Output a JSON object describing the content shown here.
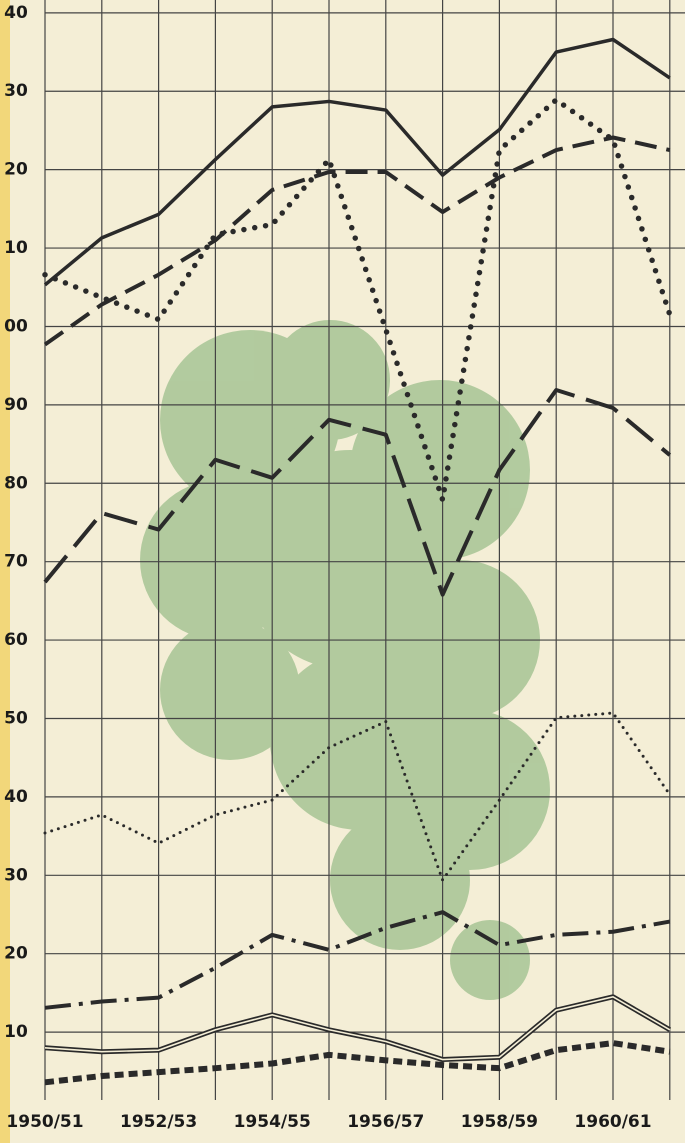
{
  "chart_data": {
    "type": "line",
    "categories": [
      "1950/51",
      null,
      "1952/53",
      null,
      "1954/55",
      null,
      "1956/57",
      null,
      "1958/59",
      null,
      "1960/61",
      null
    ],
    "ylim": [
      3,
      141
    ],
    "yticks": [
      {
        "value": 140,
        "label": "40"
      },
      {
        "value": 130,
        "label": "30"
      },
      {
        "value": 120,
        "label": "20"
      },
      {
        "value": 110,
        "label": "10"
      },
      {
        "value": 100,
        "label": "00"
      },
      90,
      80,
      70,
      60,
      50,
      40,
      30,
      20,
      10
    ],
    "grid": true,
    "series": [
      {
        "color": "#2a2a2a",
        "style": "solid",
        "values": [
          105.3,
          111.3,
          114.3,
          121.3,
          128.0,
          128.7,
          127.6,
          119.3,
          125.1,
          135.0,
          136.6,
          131.7
        ]
      },
      {
        "color": "#2a2a2a",
        "style": "dots",
        "values": [
          106.6,
          103.7,
          100.9,
          111.7,
          113.0,
          121.3,
          99.6,
          77.9,
          122.5,
          128.9,
          123.8,
          101.5
        ]
      },
      {
        "color": "#2a2a2a",
        "style": "dashed",
        "values": [
          97.7,
          102.8,
          106.6,
          111.0,
          117.4,
          119.7,
          119.7,
          114.6,
          119.0,
          122.5,
          124.1,
          122.5
        ]
      },
      {
        "color": "#2a2a2a",
        "style": "longdash",
        "values": [
          67.4,
          76.2,
          74.1,
          83.0,
          80.7,
          88.1,
          86.2,
          65.8,
          81.7,
          91.9,
          89.6,
          83.6
        ]
      },
      {
        "color": "#2a2a2a",
        "style": "dotted",
        "values": [
          35.4,
          37.7,
          34.1,
          37.7,
          39.6,
          46.3,
          49.6,
          29.4,
          39.6,
          50.1,
          50.7,
          40.3
        ]
      },
      {
        "color": "#2a2a2a",
        "style": "dashdot",
        "values": [
          13.1,
          13.9,
          14.4,
          18.2,
          22.4,
          20.5,
          23.3,
          25.3,
          21.1,
          22.4,
          22.8,
          24.1
        ]
      },
      {
        "color": "#2a2a2a",
        "style": "double",
        "values": [
          8.0,
          7.5,
          7.7,
          10.3,
          12.2,
          10.3,
          8.8,
          6.5,
          6.8,
          12.8,
          14.5,
          10.3
        ]
      },
      {
        "color": "#2a2a2a",
        "style": "heavydots",
        "values": [
          3.6,
          4.4,
          4.9,
          5.4,
          6.0,
          7.1,
          6.4,
          5.8,
          5.4,
          7.7,
          8.6,
          7.5
        ]
      }
    ]
  }
}
